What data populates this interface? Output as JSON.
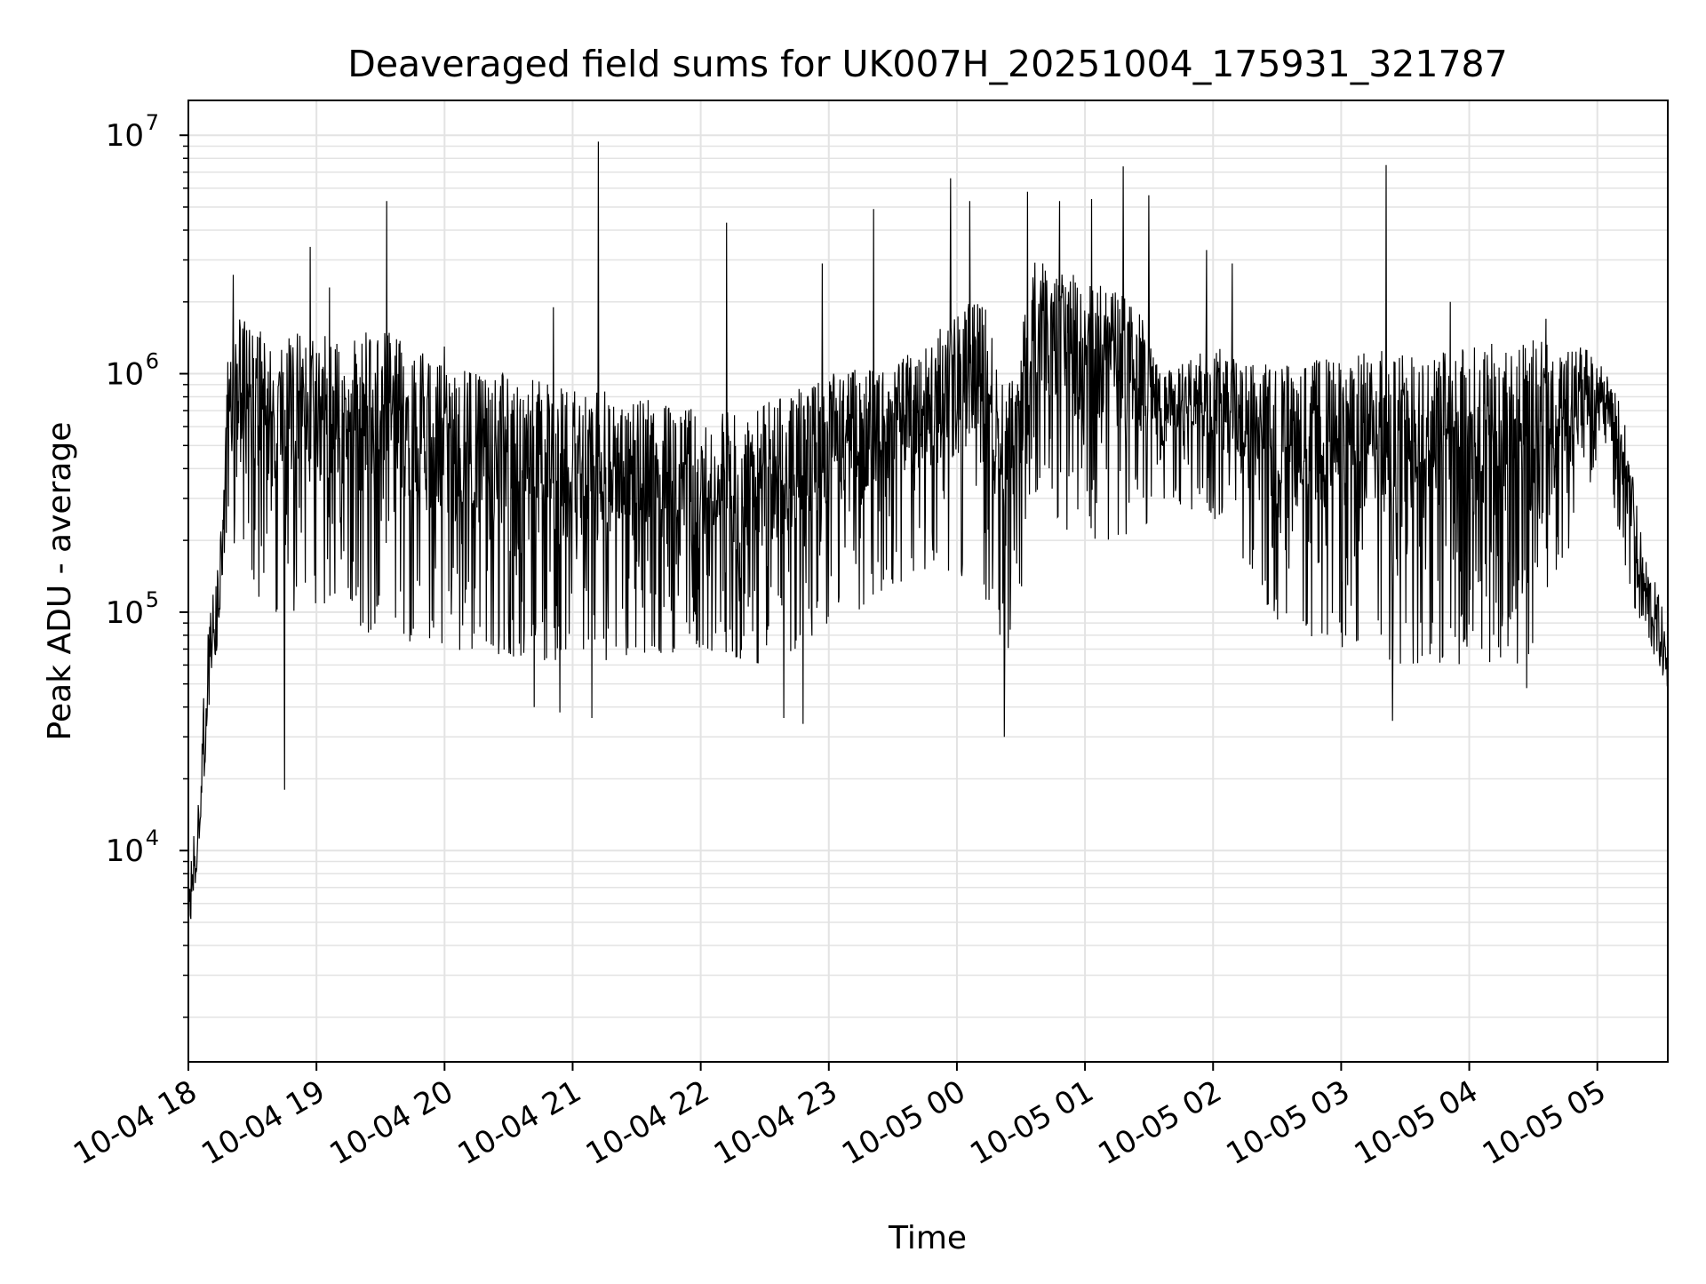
{
  "chart_data": {
    "type": "line",
    "title": "Deaveraged field sums for UK007H_20251004_175931_321787",
    "xlabel": "Time",
    "ylabel": "Peak ADU - average",
    "yscale": "log",
    "ylim": [
      1300,
      14000000
    ],
    "xlim_hours": [
      0,
      11.55
    ],
    "grid": true,
    "line_color": "#000000",
    "grid_color": "#e3e3e3",
    "x_ticks": [
      {
        "label": "10-04 18",
        "hour": 0
      },
      {
        "label": "10-04 19",
        "hour": 1
      },
      {
        "label": "10-04 20",
        "hour": 2
      },
      {
        "label": "10-04 21",
        "hour": 3
      },
      {
        "label": "10-04 22",
        "hour": 4
      },
      {
        "label": "10-04 23",
        "hour": 5
      },
      {
        "label": "10-05 00",
        "hour": 6
      },
      {
        "label": "10-05 01",
        "hour": 7
      },
      {
        "label": "10-05 02",
        "hour": 8
      },
      {
        "label": "10-05 03",
        "hour": 9
      },
      {
        "label": "10-05 04",
        "hour": 10
      },
      {
        "label": "10-05 05",
        "hour": 11
      }
    ],
    "y_ticks": [
      {
        "base": "10",
        "exp": "4",
        "value": 10000
      },
      {
        "base": "10",
        "exp": "5",
        "value": 100000
      },
      {
        "base": "10",
        "exp": "6",
        "value": 1000000
      },
      {
        "base": "10",
        "exp": "7",
        "value": 10000000
      }
    ],
    "envelope": [
      {
        "h": 0.0,
        "lo": 3500,
        "hi": 8000
      },
      {
        "h": 0.05,
        "lo": 7000,
        "hi": 14000
      },
      {
        "h": 0.1,
        "lo": 12000,
        "hi": 30000
      },
      {
        "h": 0.15,
        "lo": 35000,
        "hi": 80000
      },
      {
        "h": 0.2,
        "lo": 60000,
        "hi": 130000
      },
      {
        "h": 0.25,
        "lo": 85000,
        "hi": 200000
      },
      {
        "h": 0.3,
        "lo": 200000,
        "hi": 1100000
      },
      {
        "h": 0.4,
        "lo": 180000,
        "hi": 1700000
      },
      {
        "h": 0.6,
        "lo": 100000,
        "hi": 1500000
      },
      {
        "h": 1.0,
        "lo": 90000,
        "hi": 1500000
      },
      {
        "h": 1.5,
        "lo": 80000,
        "hi": 1600000
      },
      {
        "h": 2.0,
        "lo": 70000,
        "hi": 1100000
      },
      {
        "h": 3.0,
        "lo": 60000,
        "hi": 900000
      },
      {
        "h": 4.0,
        "lo": 70000,
        "hi": 700000
      },
      {
        "h": 4.5,
        "lo": 60000,
        "hi": 750000
      },
      {
        "h": 5.0,
        "lo": 80000,
        "hi": 1000000
      },
      {
        "h": 5.5,
        "lo": 130000,
        "hi": 1100000
      },
      {
        "h": 5.9,
        "lo": 150000,
        "hi": 1600000
      },
      {
        "h": 6.2,
        "lo": 120000,
        "hi": 2200000
      },
      {
        "h": 6.4,
        "lo": 60000,
        "hi": 900000
      },
      {
        "h": 6.6,
        "lo": 250000,
        "hi": 3000000
      },
      {
        "h": 7.0,
        "lo": 200000,
        "hi": 2500000
      },
      {
        "h": 7.4,
        "lo": 200000,
        "hi": 2000000
      },
      {
        "h": 7.6,
        "lo": 300000,
        "hi": 1000000
      },
      {
        "h": 8.0,
        "lo": 250000,
        "hi": 1300000
      },
      {
        "h": 8.5,
        "lo": 90000,
        "hi": 1100000
      },
      {
        "h": 9.0,
        "lo": 70000,
        "hi": 1200000
      },
      {
        "h": 9.5,
        "lo": 60000,
        "hi": 1300000
      },
      {
        "h": 10.0,
        "lo": 60000,
        "hi": 1300000
      },
      {
        "h": 10.5,
        "lo": 60000,
        "hi": 1400000
      },
      {
        "h": 10.9,
        "lo": 300000,
        "hi": 1300000
      },
      {
        "h": 11.05,
        "lo": 500000,
        "hi": 1100000
      },
      {
        "h": 11.2,
        "lo": 150000,
        "hi": 700000
      },
      {
        "h": 11.35,
        "lo": 80000,
        "hi": 200000
      },
      {
        "h": 11.5,
        "lo": 55000,
        "hi": 110000
      },
      {
        "h": 11.55,
        "lo": 45000,
        "hi": 70000
      }
    ],
    "spikes": [
      {
        "h": 0.35,
        "v": 2600000
      },
      {
        "h": 0.95,
        "v": 3400000
      },
      {
        "h": 1.1,
        "v": 2300000
      },
      {
        "h": 1.55,
        "v": 5300000
      },
      {
        "h": 2.0,
        "v": 1300000
      },
      {
        "h": 2.85,
        "v": 1900000
      },
      {
        "h": 3.2,
        "v": 9400000
      },
      {
        "h": 4.2,
        "v": 4300000
      },
      {
        "h": 4.95,
        "v": 2900000
      },
      {
        "h": 5.35,
        "v": 4900000
      },
      {
        "h": 5.95,
        "v": 6600000
      },
      {
        "h": 6.1,
        "v": 5300000
      },
      {
        "h": 6.55,
        "v": 5800000
      },
      {
        "h": 6.8,
        "v": 5300000
      },
      {
        "h": 7.05,
        "v": 5400000
      },
      {
        "h": 7.3,
        "v": 7400000
      },
      {
        "h": 7.5,
        "v": 5600000
      },
      {
        "h": 7.95,
        "v": 3300000
      },
      {
        "h": 8.15,
        "v": 2900000
      },
      {
        "h": 9.35,
        "v": 7500000
      },
      {
        "h": 9.85,
        "v": 2000000
      },
      {
        "h": 10.6,
        "v": 1700000
      },
      {
        "h": 0.75,
        "v": 18000
      },
      {
        "h": 2.7,
        "v": 40000
      },
      {
        "h": 2.9,
        "v": 38000
      },
      {
        "h": 3.15,
        "v": 36000
      },
      {
        "h": 4.65,
        "v": 36000
      },
      {
        "h": 4.8,
        "v": 34000
      },
      {
        "h": 6.37,
        "v": 30000
      },
      {
        "h": 9.4,
        "v": 35000
      },
      {
        "h": 10.45,
        "v": 48000
      }
    ]
  }
}
